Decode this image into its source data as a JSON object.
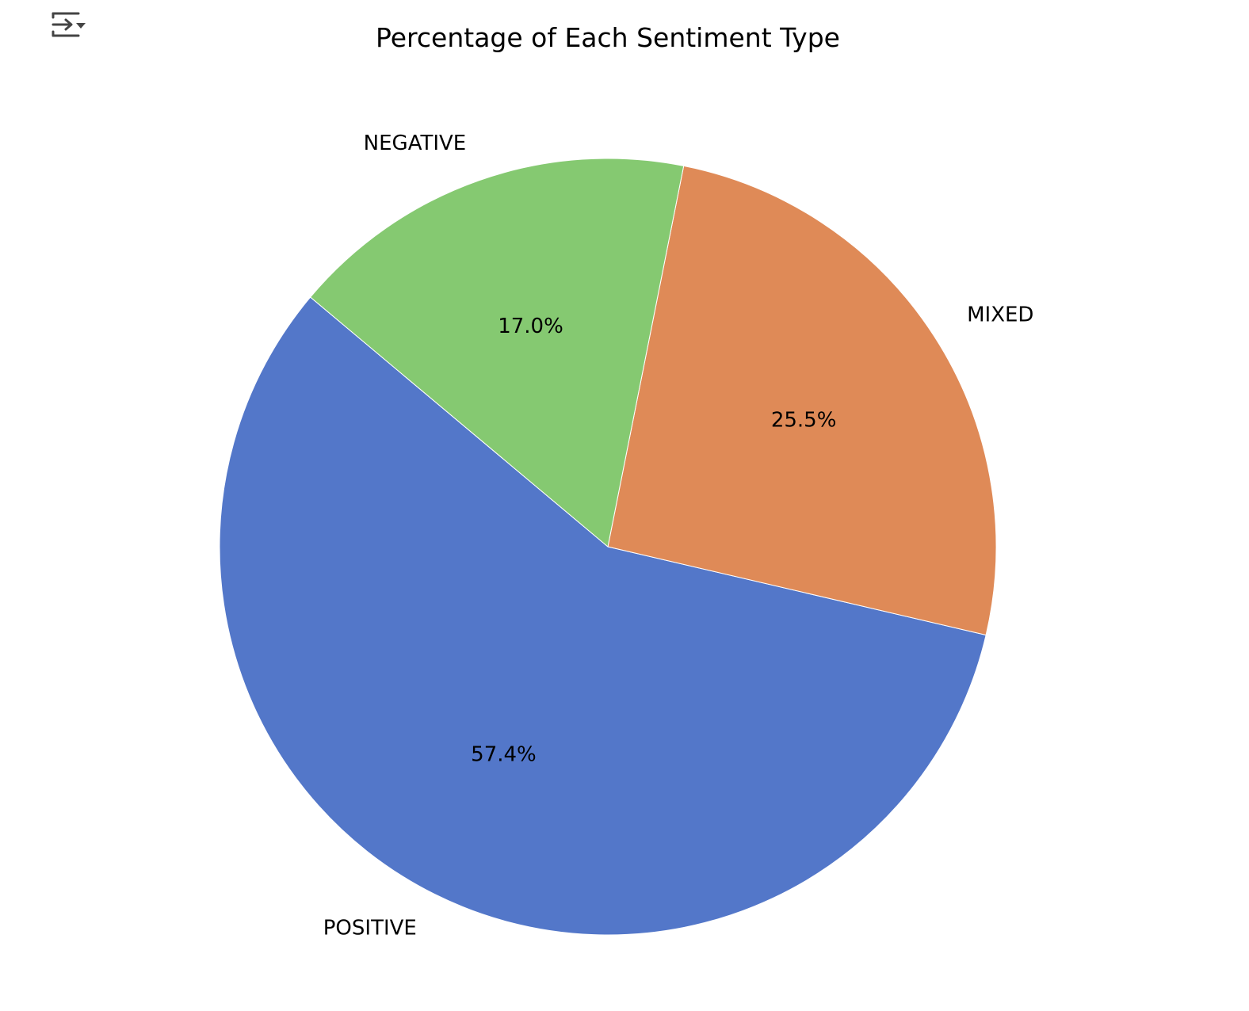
{
  "toolbar": {
    "output_toggle_icon": "collapse-output-icon"
  },
  "chart_data": {
    "type": "pie",
    "title": "Percentage of Each Sentiment Type",
    "start_angle_deg": 140,
    "direction": "counterclockwise",
    "slices": [
      {
        "label": "POSITIVE",
        "value": 57.4,
        "pct_label": "57.4%",
        "color": "#5377C9"
      },
      {
        "label": "MIXED",
        "value": 25.5,
        "pct_label": "25.5%",
        "color": "#DF8A57"
      },
      {
        "label": "NEGATIVE",
        "value": 17.0,
        "pct_label": "17.0%",
        "color": "#85C971"
      }
    ]
  }
}
